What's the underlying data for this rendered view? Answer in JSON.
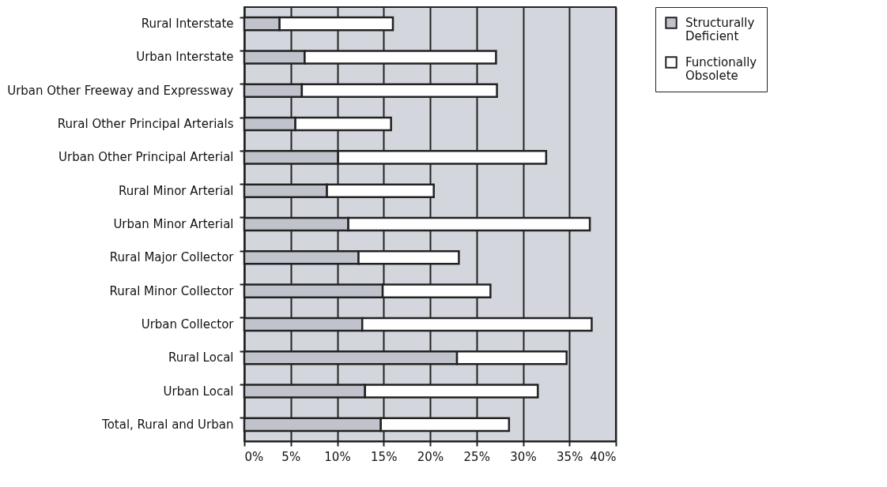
{
  "chart_data": {
    "type": "bar",
    "orientation": "horizontal",
    "stacked": true,
    "categories": [
      "Rural Interstate",
      "Urban Interstate",
      "Urban Other Freeway and Expressway",
      "Rural Other Principal Arterials",
      "Urban Other Principal Arterial",
      "Rural Minor Arterial",
      "Urban Minor Arterial",
      "Rural Major Collector",
      "Rural Minor Collector",
      "Urban Collector",
      "Rural Local",
      "Urban Local",
      "Total, Rural and Urban"
    ],
    "series": [
      {
        "name": "Structurally Deficient",
        "color": "#c0c3cb",
        "values": [
          3.8,
          6.5,
          6.2,
          5.5,
          10.1,
          8.9,
          11.2,
          12.3,
          14.9,
          12.7,
          22.9,
          13.0,
          14.7
        ]
      },
      {
        "name": "Functionally Obsolete",
        "color": "#ffffff",
        "values": [
          12.2,
          20.6,
          21.0,
          10.3,
          22.4,
          11.5,
          26.0,
          10.8,
          11.6,
          24.7,
          11.8,
          18.6,
          13.8
        ]
      }
    ],
    "xlim": [
      0,
      40
    ],
    "xticks": [
      {
        "value": 0,
        "label": "0%"
      },
      {
        "value": 5,
        "label": "5%"
      },
      {
        "value": 10,
        "label": "10%"
      },
      {
        "value": 15,
        "label": "15%"
      },
      {
        "value": 20,
        "label": "20%"
      },
      {
        "value": 25,
        "label": "25%"
      },
      {
        "value": 30,
        "label": "30%"
      },
      {
        "value": 35,
        "label": "35%"
      },
      {
        "value": 40,
        "label": "40%"
      }
    ],
    "grid": "x",
    "legend": "right"
  }
}
